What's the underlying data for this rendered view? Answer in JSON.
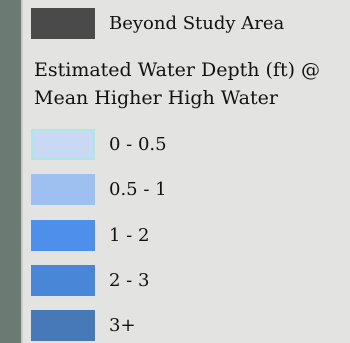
{
  "legend": {
    "beyond": {
      "label": "Beyond Study Area",
      "color": "#4a4a4a"
    },
    "title_lines": [
      "Estimated Water Depth (ft) @",
      "Mean Higher High Water"
    ],
    "classes": [
      {
        "label": "0 - 0.5",
        "color": "#c9d8f3",
        "border": "#aee6e6"
      },
      {
        "label": "0.5 - 1",
        "color": "#9ec0f0",
        "border": "#9ec0f0"
      },
      {
        "label": "1 - 2",
        "color": "#4d8fea",
        "border": "#4d8fea"
      },
      {
        "label": "2 - 3",
        "color": "#4a86d8",
        "border": "#4a86d8"
      },
      {
        "label": "3+",
        "color": "#4778b8",
        "border": "#4778b8"
      }
    ]
  }
}
